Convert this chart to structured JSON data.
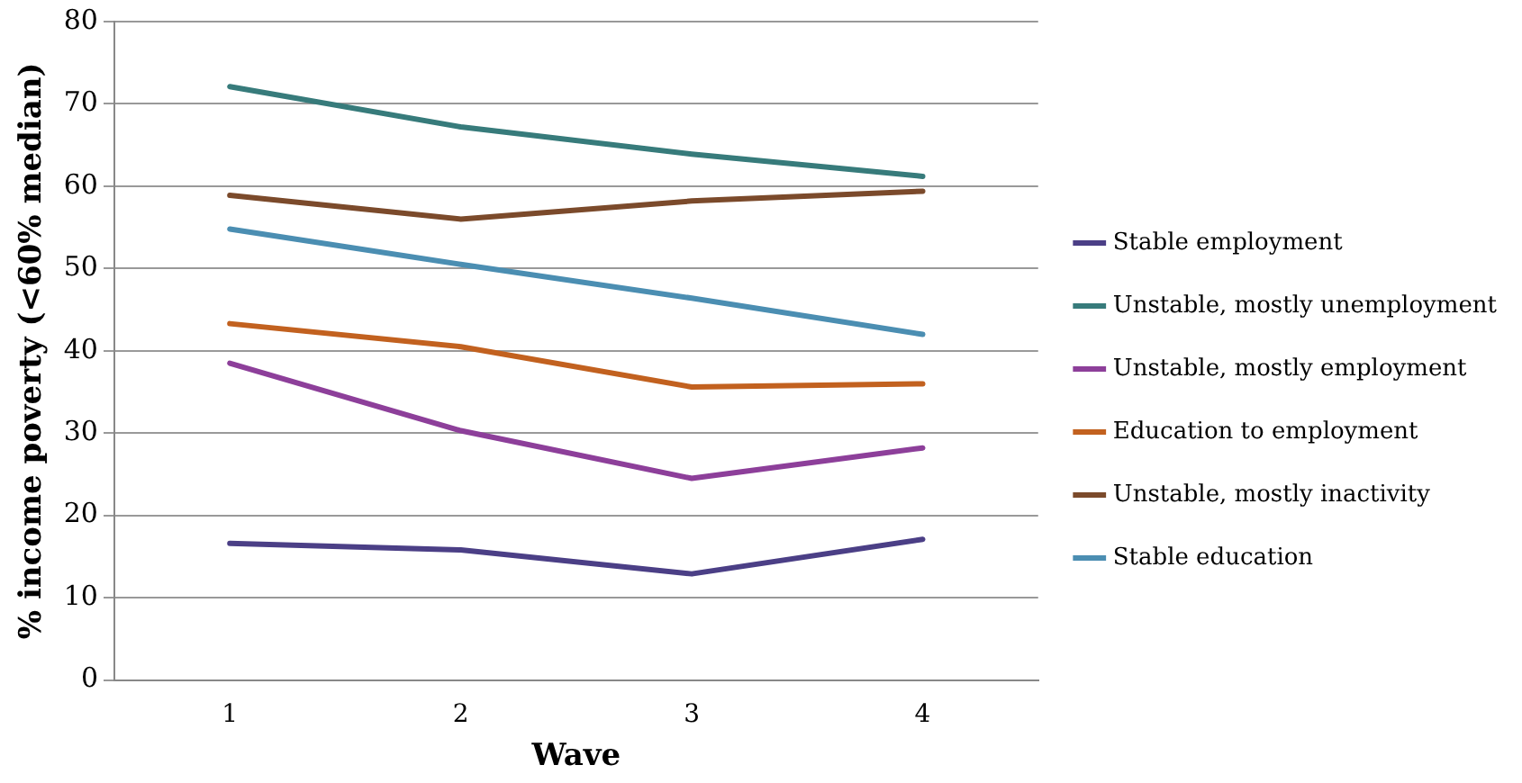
{
  "chart_data": {
    "type": "line",
    "xlabel": "Wave",
    "ylabel": "% income poverty (<60% median)",
    "categories": [
      "1",
      "2",
      "3",
      "4"
    ],
    "ylim": [
      0,
      80
    ],
    "yticks": [
      0,
      10,
      20,
      30,
      40,
      50,
      60,
      70,
      80
    ],
    "grid": "y",
    "legend": "right",
    "marker": "none",
    "line_style": "solid",
    "series": [
      {
        "name": "Stable employment",
        "color": "#4b3f86",
        "values": [
          16.6,
          15.8,
          12.9,
          17.1
        ]
      },
      {
        "name": "Unstable, mostly unemployment",
        "color": "#377b7b",
        "values": [
          72.1,
          67.2,
          63.9,
          61.2
        ]
      },
      {
        "name": "Unstable, mostly employment",
        "color": "#8d3f9a",
        "values": [
          38.5,
          30.3,
          24.5,
          28.2
        ]
      },
      {
        "name": "Education to employment",
        "color": "#c2611f",
        "values": [
          43.3,
          40.5,
          35.6,
          36
        ]
      },
      {
        "name": "Unstable, mostly inactivity",
        "color": "#7b4a2b",
        "values": [
          58.9,
          56,
          58.2,
          59.4
        ]
      },
      {
        "name": "Stable education",
        "color": "#4b8eb2",
        "values": [
          54.8,
          50.5,
          46.4,
          42
        ]
      }
    ]
  }
}
